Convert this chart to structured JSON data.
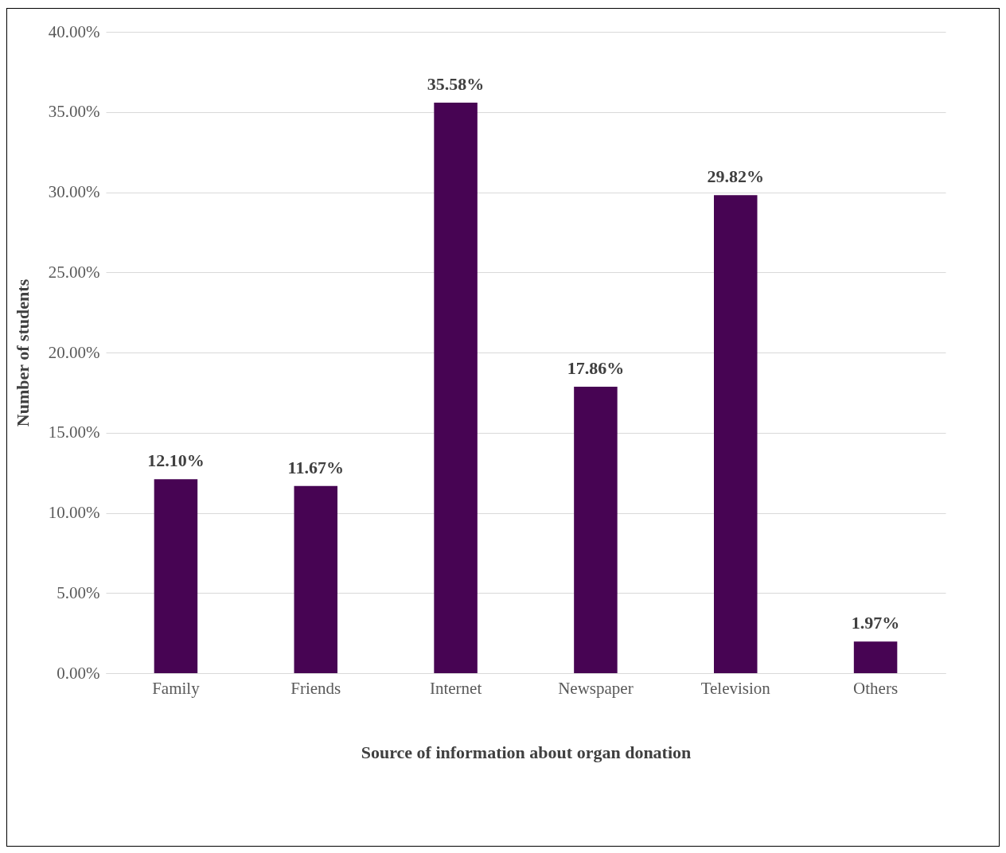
{
  "chart_data": {
    "type": "bar",
    "xlabel": "Source of information about organ donation",
    "ylabel": "Number of students",
    "categories": [
      "Family",
      "Friends",
      "Internet",
      "Newspaper",
      "Television",
      "Others"
    ],
    "values": [
      12.1,
      11.67,
      35.58,
      17.86,
      29.82,
      1.97
    ],
    "value_labels": [
      "12.10%",
      "11.67%",
      "35.58%",
      "17.86%",
      "29.82%",
      "1.97%"
    ],
    "color": "#470453",
    "ylim": [
      0,
      40
    ],
    "yticks": [
      {
        "value": 0,
        "label": "0.00%"
      },
      {
        "value": 5,
        "label": "5.00%"
      },
      {
        "value": 10,
        "label": "10.00%"
      },
      {
        "value": 15,
        "label": "15.00%"
      },
      {
        "value": 20,
        "label": "20.00%"
      },
      {
        "value": 25,
        "label": "25.00%"
      },
      {
        "value": 30,
        "label": "30.00%"
      },
      {
        "value": 35,
        "label": "35.00%"
      },
      {
        "value": 40,
        "label": "40.00%"
      }
    ],
    "grid": true
  }
}
